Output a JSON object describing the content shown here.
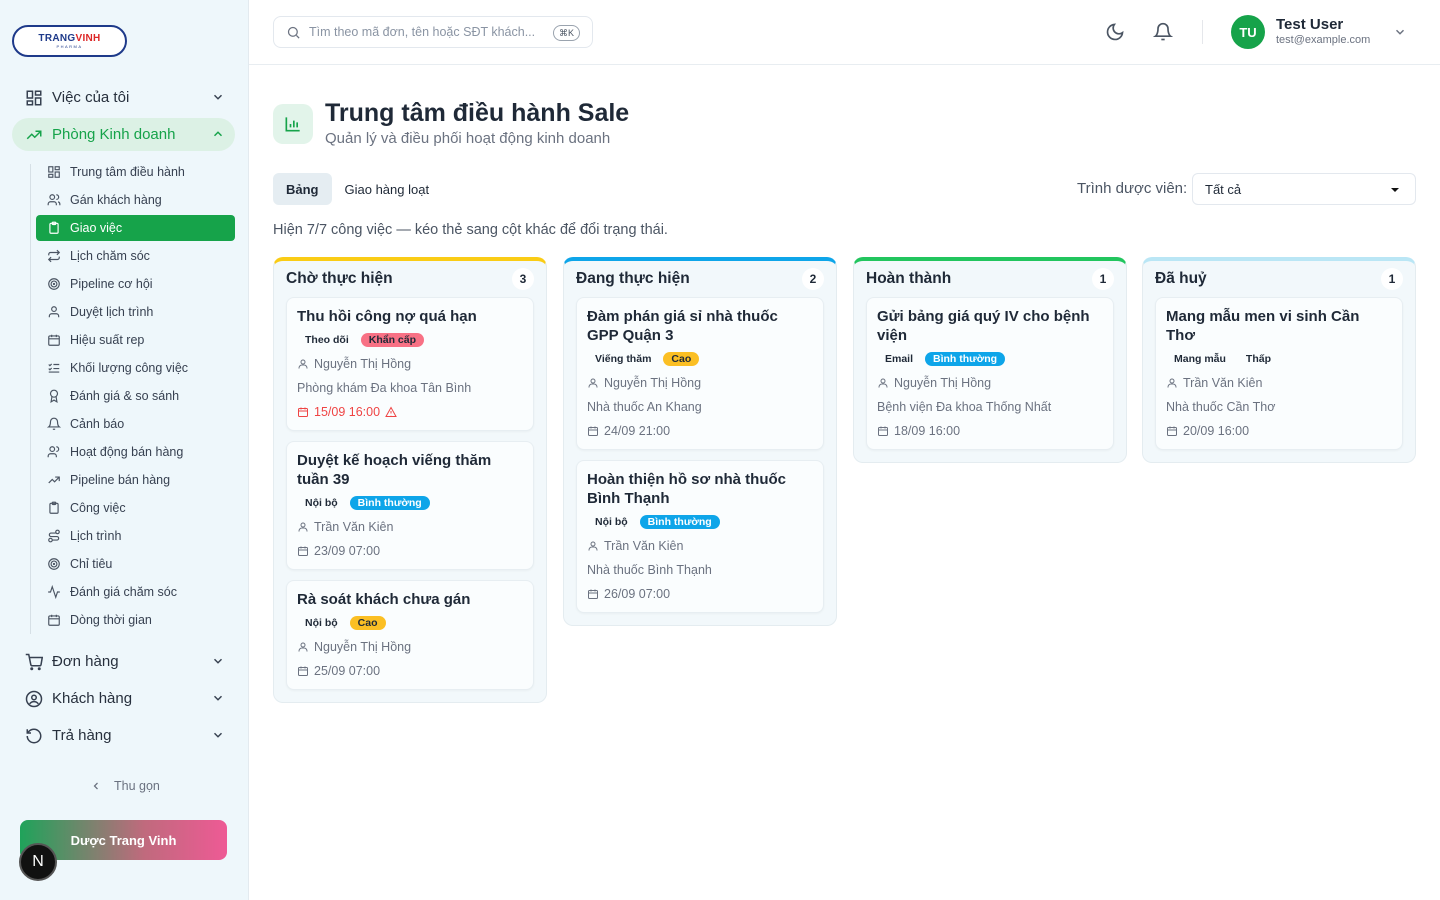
{
  "brand": {
    "logo_main": "TRANG",
    "logo_accent": "VINH",
    "logo_sub": "PHARMA",
    "footer_label": "Dược Trang Vinh",
    "badge": "N"
  },
  "sidebar": {
    "groups": [
      {
        "label": "Việc của tôi",
        "icon": "grid-icon"
      },
      {
        "label": "Phòng Kinh doanh",
        "icon": "trending-up-icon"
      },
      {
        "label": "Đơn hàng",
        "icon": "cart-icon"
      },
      {
        "label": "Khách hàng",
        "icon": "user-circle-icon"
      },
      {
        "label": "Trả hàng",
        "icon": "undo-icon"
      }
    ],
    "items": [
      {
        "label": "Trung tâm điều hành",
        "icon": "grid-icon"
      },
      {
        "label": "Gán khách hàng",
        "icon": "users-icon"
      },
      {
        "label": "Giao việc",
        "icon": "clipboard-icon"
      },
      {
        "label": "Lịch chăm sóc",
        "icon": "repeat-icon"
      },
      {
        "label": "Pipeline cơ hội",
        "icon": "target-icon"
      },
      {
        "label": "Duyệt lịch trình",
        "icon": "user-check-icon"
      },
      {
        "label": "Hiệu suất rep",
        "icon": "calendar-icon"
      },
      {
        "label": "Khối lượng công việc",
        "icon": "list-check-icon"
      },
      {
        "label": "Đánh giá & so sánh",
        "icon": "award-icon"
      },
      {
        "label": "Cảnh báo",
        "icon": "bell-icon"
      },
      {
        "label": "Hoạt động bán hàng",
        "icon": "users-icon"
      },
      {
        "label": "Pipeline bán hàng",
        "icon": "trending-up-icon"
      },
      {
        "label": "Công việc",
        "icon": "clipboard-icon"
      },
      {
        "label": "Lịch trình",
        "icon": "route-icon"
      },
      {
        "label": "Chỉ tiêu",
        "icon": "target-icon"
      },
      {
        "label": "Đánh giá chăm sóc",
        "icon": "activity-icon"
      },
      {
        "label": "Dòng thời gian",
        "icon": "calendar-icon"
      }
    ],
    "collapse_label": "Thu gọn"
  },
  "topbar": {
    "search_placeholder": "Tìm theo mã đơn, tên hoặc SĐT khách...",
    "shortcut": "⌘K",
    "user": {
      "initials": "TU",
      "name": "Test User",
      "email": "test@example.com"
    }
  },
  "page": {
    "title": "Trung tâm điều hành Sale",
    "subtitle": "Quản lý và điều phối hoạt động kinh doanh",
    "tabs": [
      "Bảng",
      "Giao hàng loạt"
    ],
    "rep_label": "Trình dược viên:",
    "rep_value": "Tất cả",
    "hint": "Hiện 7/7 công việc — kéo thẻ sang cột khác để đổi trạng thái."
  },
  "colors": {
    "accent": "#16a34a",
    "col_pending": "#facc15",
    "col_progress": "#0ea5e9",
    "col_done": "#22c55e",
    "col_cancel": "#bae6f5",
    "pri_urgent": "#f87185",
    "pri_high": "#fbbf24",
    "pri_normal": "#0ea5e9"
  },
  "columns": [
    {
      "title": "Chờ thực hiện",
      "count": "3",
      "cards": [
        {
          "title": "Thu hồi công nợ quá hạn",
          "type": "Theo dõi",
          "priority": "Khẩn cấp",
          "assignee": "Nguyễn Thị Hồng",
          "customer": "Phòng khám Đa khoa Tân Bình",
          "due": "15/09 16:00"
        },
        {
          "title": "Duyệt kế hoạch viếng thăm tuần 39",
          "type": "Nội bộ",
          "priority": "Bình thường",
          "assignee": "Trần Văn Kiên",
          "due": "23/09 07:00"
        },
        {
          "title": "Rà soát khách chưa gán",
          "type": "Nội bộ",
          "priority": "Cao",
          "assignee": "Nguyễn Thị Hồng",
          "due": "25/09 07:00"
        }
      ]
    },
    {
      "title": "Đang thực hiện",
      "count": "2",
      "cards": [
        {
          "title": "Đàm phán giá sỉ nhà thuốc GPP Quận 3",
          "type": "Viếng thăm",
          "priority": "Cao",
          "assignee": "Nguyễn Thị Hồng",
          "customer": "Nhà thuốc An Khang",
          "due": "24/09 21:00"
        },
        {
          "title": "Hoàn thiện hồ sơ nhà thuốc Bình Thạnh",
          "type": "Nội bộ",
          "priority": "Bình thường",
          "assignee": "Trần Văn Kiên",
          "customer": "Nhà thuốc Bình Thạnh",
          "due": "26/09 07:00"
        }
      ]
    },
    {
      "title": "Hoàn thành",
      "count": "1",
      "cards": [
        {
          "title": "Gửi bảng giá quý IV cho bệnh viện",
          "type": "Email",
          "priority": "Bình thường",
          "assignee": "Nguyễn Thị Hồng",
          "customer": "Bệnh viện Đa khoa Thống Nhất",
          "due": "18/09 16:00"
        }
      ]
    },
    {
      "title": "Đã huỷ",
      "count": "1",
      "cards": [
        {
          "title": "Mang mẫu men vi sinh Cần Thơ",
          "type": "Mang mẫu",
          "priority": "Thấp",
          "assignee": "Trần Văn Kiên",
          "customer": "Nhà thuốc Cần Thơ",
          "due": "20/09 16:00"
        }
      ]
    }
  ]
}
